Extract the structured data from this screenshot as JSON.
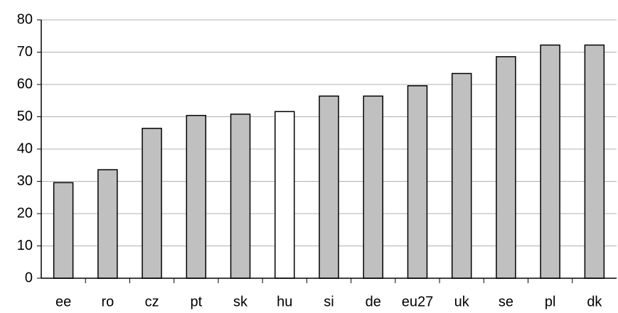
{
  "chart_data": {
    "type": "bar",
    "categories": [
      "ee",
      "ro",
      "cz",
      "pt",
      "sk",
      "hu",
      "si",
      "de",
      "eu27",
      "uk",
      "se",
      "pl",
      "dk"
    ],
    "values": [
      29.6,
      33.6,
      46.4,
      50.4,
      50.8,
      51.6,
      56.4,
      56.4,
      59.6,
      63.4,
      68.6,
      72.2,
      72.2
    ],
    "colors": [
      "#c0c0c0",
      "#c0c0c0",
      "#c0c0c0",
      "#c0c0c0",
      "#c0c0c0",
      "#ffffff",
      "#c0c0c0",
      "#c0c0c0",
      "#c0c0c0",
      "#c0c0c0",
      "#c0c0c0",
      "#c0c0c0",
      "#c0c0c0"
    ],
    "ylim": [
      0,
      80
    ],
    "yticks": [
      0,
      10,
      20,
      30,
      40,
      50,
      60,
      70,
      80
    ],
    "grid": true
  }
}
